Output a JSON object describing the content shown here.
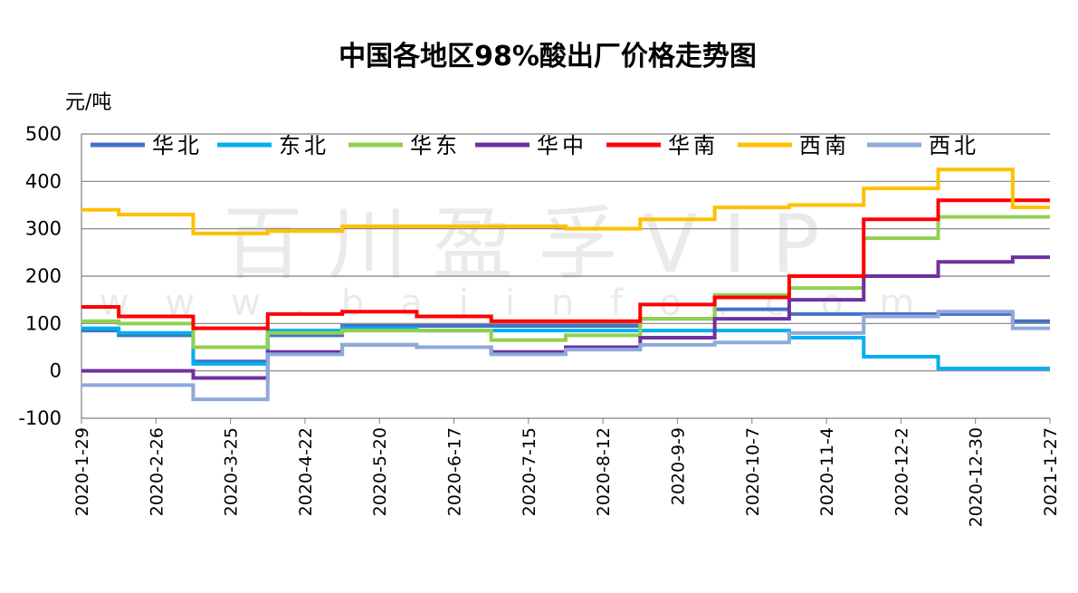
{
  "chart_data": {
    "type": "line",
    "title": "中国各地区98%酸出厂价格走势图",
    "ylabel": "元/吨",
    "xlabel": "",
    "ylim": [
      -100,
      500
    ],
    "yticks": [
      "500",
      "400",
      "300",
      "200",
      "100",
      "0",
      "-100"
    ],
    "x": [
      "2020-1-29",
      "2020-2-26",
      "2020-3-25",
      "2020-4-22",
      "2020-5-20",
      "2020-6-17",
      "2020-7-15",
      "2020-8-12",
      "2020-9-9",
      "2020-10-7",
      "2020-11-4",
      "2020-12-2",
      "2020-12-30",
      "2021-1-27"
    ],
    "grid": true,
    "legend_position": "top",
    "watermark": [
      "百川盈孚VIP",
      "www.baiinfo.com"
    ],
    "series": [
      {
        "name": "华北",
        "color": "#4472c4",
        "values": [
          85,
          75,
          20,
          75,
          95,
          95,
          95,
          95,
          110,
          130,
          120,
          120,
          120,
          105
        ]
      },
      {
        "name": "东北",
        "color": "#00b0f0",
        "values": [
          90,
          80,
          15,
          85,
          90,
          85,
          85,
          85,
          85,
          85,
          70,
          30,
          5,
          5
        ]
      },
      {
        "name": "华东",
        "color": "#92d050",
        "values": [
          105,
          100,
          50,
          80,
          85,
          85,
          65,
          75,
          110,
          160,
          175,
          280,
          325,
          325
        ]
      },
      {
        "name": "华中",
        "color": "#7030a0",
        "values": [
          0,
          0,
          -15,
          40,
          55,
          50,
          40,
          50,
          70,
          110,
          150,
          200,
          230,
          240
        ]
      },
      {
        "name": "华南",
        "color": "#ff0000",
        "values": [
          135,
          115,
          90,
          120,
          125,
          115,
          105,
          105,
          140,
          155,
          200,
          320,
          360,
          360
        ]
      },
      {
        "name": "西南",
        "color": "#ffc000",
        "values": [
          340,
          330,
          290,
          295,
          305,
          305,
          305,
          300,
          320,
          345,
          350,
          385,
          425,
          345
        ]
      },
      {
        "name": "西北",
        "color": "#8ea9db",
        "values": [
          -30,
          -30,
          -60,
          35,
          55,
          50,
          35,
          45,
          55,
          60,
          80,
          115,
          125,
          90
        ]
      }
    ]
  }
}
